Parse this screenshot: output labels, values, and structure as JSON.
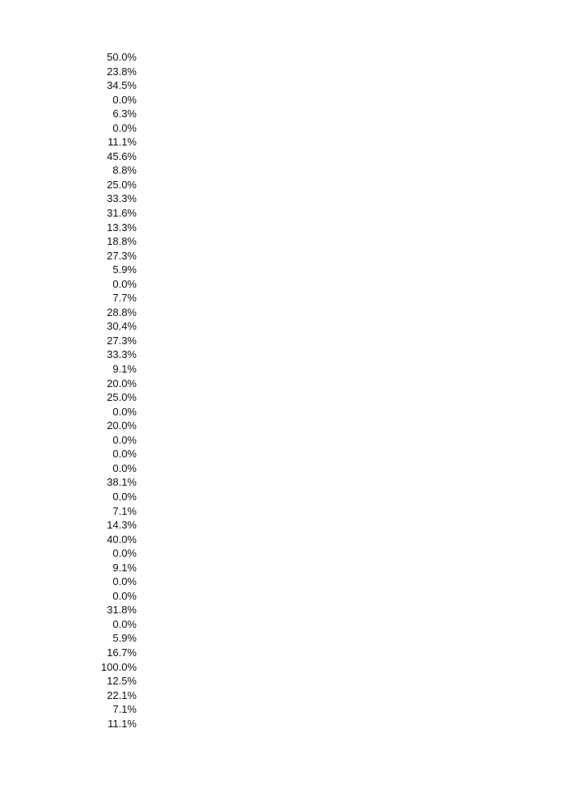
{
  "page": {
    "background_color": "#ffffff",
    "text_color": "#111111"
  },
  "percentage_column": {
    "values": [
      "50.0%",
      "23.8%",
      "34.5%",
      "0.0%",
      "6.3%",
      "0.0%",
      "11.1%",
      "45.6%",
      "8.8%",
      "25.0%",
      "33.3%",
      "31.6%",
      "13.3%",
      "18.8%",
      "27.3%",
      "5.9%",
      "0.0%",
      "7.7%",
      "28.8%",
      "30.4%",
      "27.3%",
      "33.3%",
      "9.1%",
      "20.0%",
      "25.0%",
      "0.0%",
      "20.0%",
      "0.0%",
      "0.0%",
      "0.0%",
      "38.1%",
      "0.0%",
      "7.1%",
      "14.3%",
      "40.0%",
      "0.0%",
      "9.1%",
      "0.0%",
      "0.0%",
      "31.8%",
      "0.0%",
      "5.9%",
      "16.7%",
      "100.0%",
      "12.5%",
      "22.1%",
      "7.1%",
      "11.1%"
    ]
  }
}
